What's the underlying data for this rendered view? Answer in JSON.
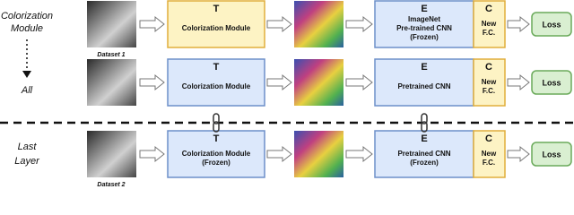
{
  "side_labels": [
    [
      "Colorization",
      "Module"
    ],
    [
      "All"
    ],
    [
      "Last",
      "Layer"
    ]
  ],
  "rows": [
    {
      "dataset": "Dataset 1",
      "t": {
        "letter": "T",
        "lines": [
          "Colorization Module"
        ]
      },
      "e": {
        "letter": "E",
        "lines": [
          "ImageNet",
          "Pre-trained CNN",
          "(Frozen)"
        ]
      },
      "c": {
        "letter": "C",
        "lines": [
          "New",
          "F.C."
        ]
      },
      "loss": "Loss"
    },
    {
      "t": {
        "letter": "T",
        "lines": [
          "Colorization Module"
        ]
      },
      "e": {
        "letter": "E",
        "lines": [
          "Pretrained CNN"
        ]
      },
      "c": {
        "letter": "C",
        "lines": [
          "New",
          "F.C."
        ]
      },
      "loss": "Loss"
    },
    {
      "dataset": "Dataset 2",
      "t": {
        "letter": "T",
        "lines": [
          "Colorization Module",
          "(Frozen)"
        ]
      },
      "e": {
        "letter": "E",
        "lines": [
          "Pretrained CNN",
          "(Frozen)"
        ]
      },
      "c": {
        "letter": "C",
        "lines": [
          "New",
          "F.C."
        ]
      },
      "loss": "Loss"
    }
  ]
}
